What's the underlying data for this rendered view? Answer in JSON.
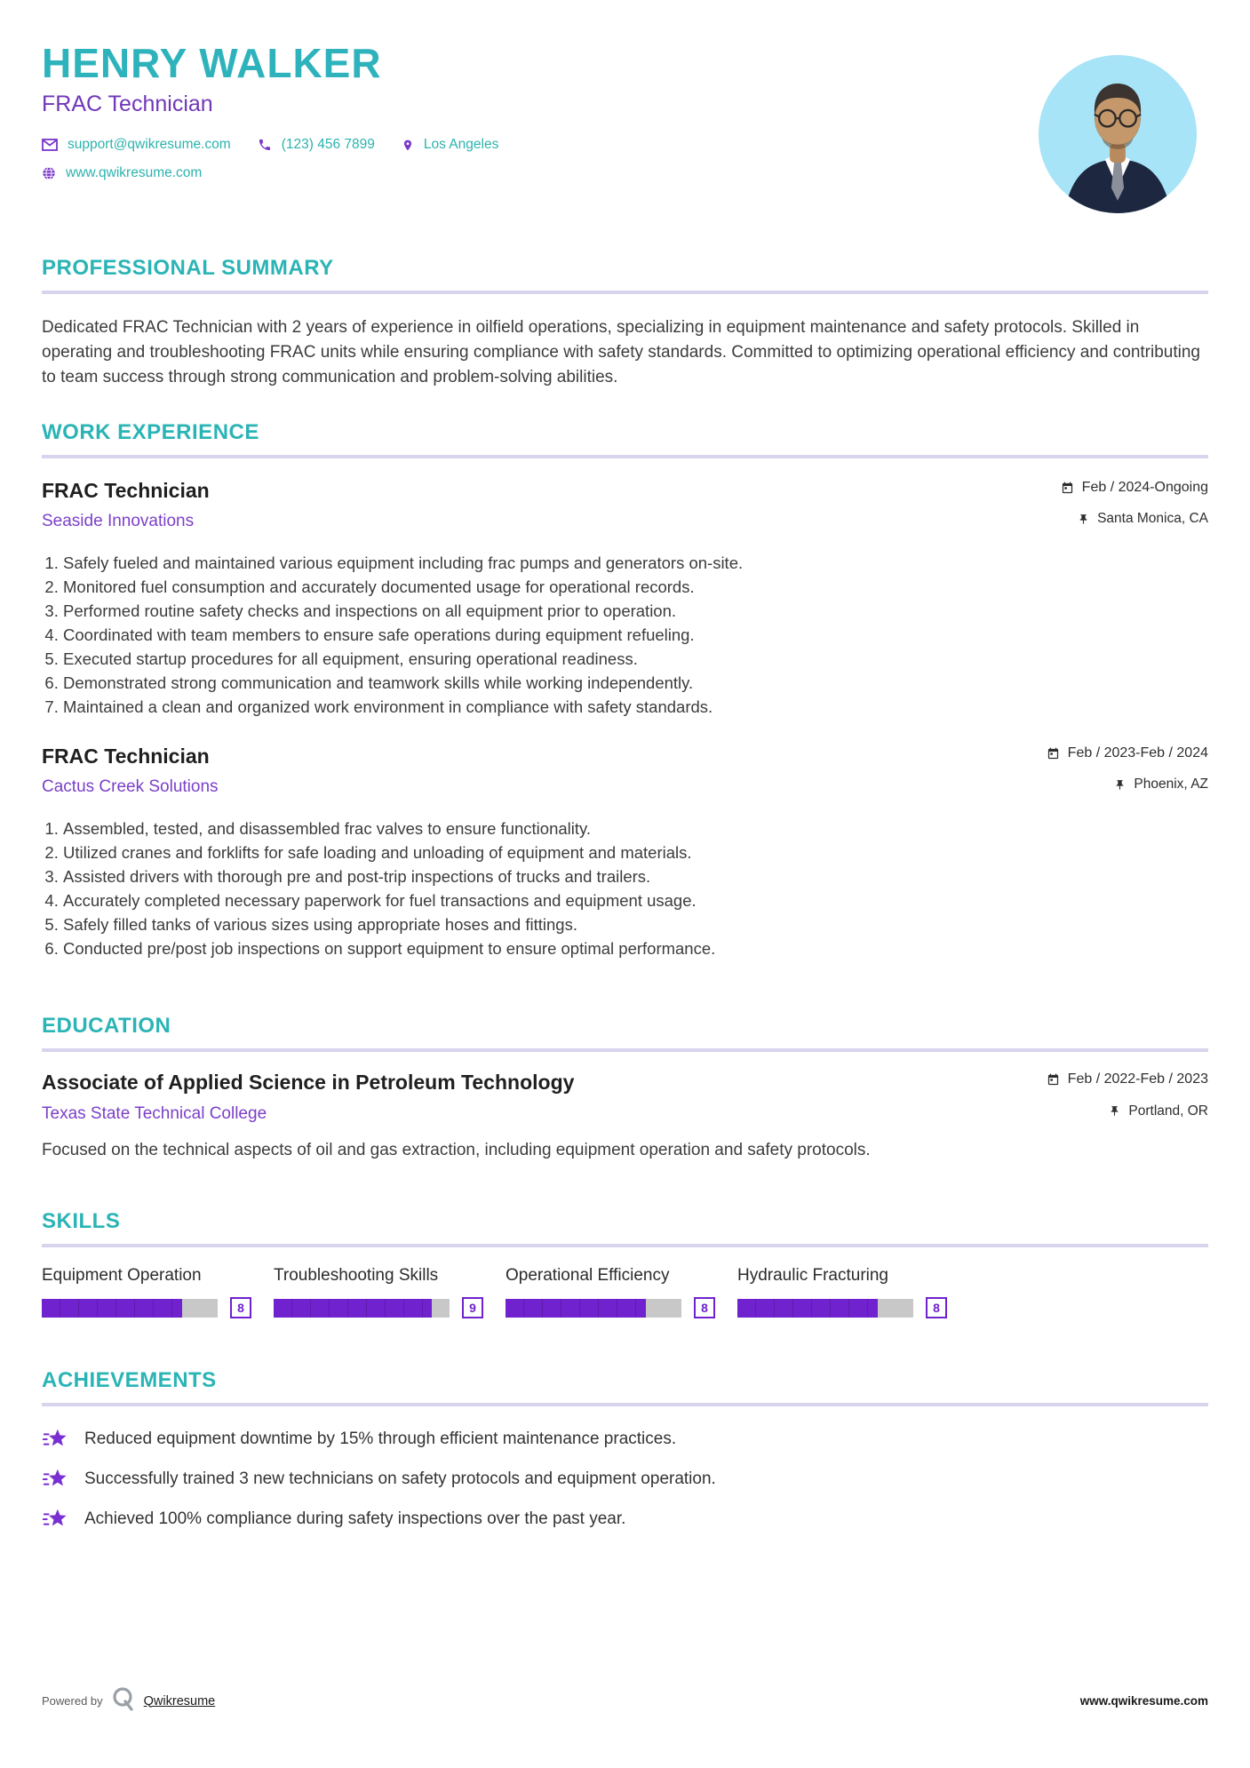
{
  "header": {
    "name": "HENRY WALKER",
    "title": "FRAC Technician",
    "email": "support@qwikresume.com",
    "phone": "(123) 456 7899",
    "location": "Los Angeles",
    "website": "www.qwikresume.com"
  },
  "sections": {
    "summary": {
      "heading": "PROFESSIONAL SUMMARY",
      "text": "Dedicated FRAC Technician with 2 years of experience in oilfield operations, specializing in equipment maintenance and safety protocols. Skilled in operating and troubleshooting FRAC units while ensuring compliance with safety standards. Committed to optimizing operational efficiency and contributing to team success through strong communication and problem-solving abilities."
    },
    "experience": {
      "heading": "WORK EXPERIENCE",
      "jobs": [
        {
          "title": "FRAC Technician",
          "company": "Seaside Innovations",
          "dates": "Feb / 2024-Ongoing",
          "location": "Santa Monica, CA",
          "bullets": [
            "Safely fueled and maintained various equipment including frac pumps and generators on-site.",
            "Monitored fuel consumption and accurately documented usage for operational records.",
            "Performed routine safety checks and inspections on all equipment prior to operation.",
            "Coordinated with team members to ensure safe operations during equipment refueling.",
            "Executed startup procedures for all equipment, ensuring operational readiness.",
            "Demonstrated strong communication and teamwork skills while working independently.",
            "Maintained a clean and organized work environment in compliance with safety standards."
          ]
        },
        {
          "title": "FRAC Technician",
          "company": "Cactus Creek Solutions",
          "dates": "Feb / 2023-Feb / 2024",
          "location": "Phoenix, AZ",
          "bullets": [
            "Assembled, tested, and disassembled frac valves to ensure functionality.",
            "Utilized cranes and forklifts for safe loading and unloading of equipment and materials.",
            "Assisted drivers with thorough pre and post-trip inspections of trucks and trailers.",
            "Accurately completed necessary paperwork for fuel transactions and equipment usage.",
            "Safely filled tanks of various sizes using appropriate hoses and fittings.",
            "Conducted pre/post job inspections on support equipment to ensure optimal performance."
          ]
        }
      ]
    },
    "education": {
      "heading": "EDUCATION",
      "degree": "Associate of Applied Science in Petroleum Technology",
      "school": "Texas State Technical College",
      "dates": "Feb / 2022-Feb / 2023",
      "location": "Portland, OR",
      "description": "Focused on the technical aspects of oil and gas extraction, including equipment operation and safety protocols."
    },
    "skills": {
      "heading": "SKILLS",
      "items": [
        {
          "name": "Equipment Operation",
          "level": 8
        },
        {
          "name": "Troubleshooting Skills",
          "level": 9
        },
        {
          "name": "Operational Efficiency",
          "level": 8
        },
        {
          "name": "Hydraulic Fracturing",
          "level": 8
        }
      ]
    },
    "achievements": {
      "heading": "ACHIEVEMENTS",
      "items": [
        "Reduced equipment downtime by 15% through efficient maintenance practices.",
        "Successfully trained 3 new technicians on safety protocols and equipment operation.",
        "Achieved 100% compliance during safety inspections over the past year."
      ]
    }
  },
  "footer": {
    "powered_by": "Powered by",
    "brand": "Qwikresume",
    "website": "www.qwikresume.com"
  },
  "icons": {
    "email": "envelope-icon",
    "phone": "phone-icon",
    "location": "location-pin-icon",
    "website": "globe-icon",
    "dates": "calendar-icon",
    "place": "pushpin-icon",
    "achievement": "shooting-star-icon",
    "brand": "qwikresume-q-icon"
  },
  "colors": {
    "accent_teal": "#2eb3bc",
    "accent_purple": "#7137b8",
    "link_purple": "#7b40c8",
    "bar_purple": "#6f22cd",
    "section_underline": "#d9d3ee",
    "avatar_bg": "#a7e4f7"
  }
}
